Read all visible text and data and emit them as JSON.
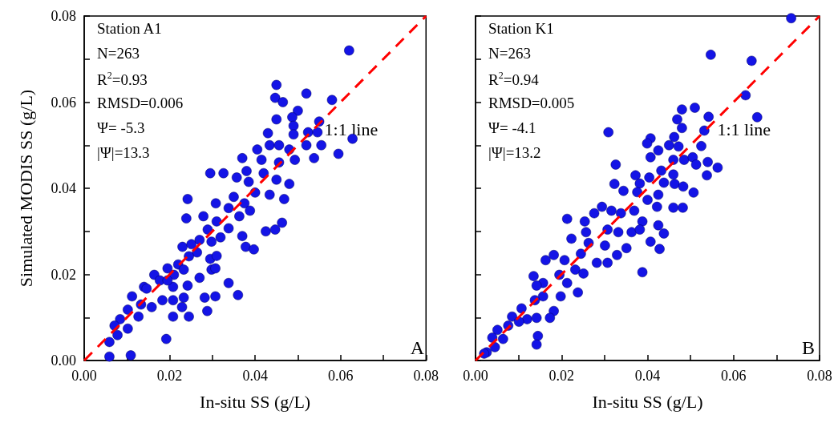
{
  "chart_data": [
    {
      "type": "scatter",
      "title": "Station A1",
      "subtitle": "A",
      "xlabel": "In-situ SS (g/L)",
      "ylabel": "Simulated MODIS SS (g/L)",
      "annotations": [
        "N=263",
        "R$^{2}$=0.93",
        "RMSD=0.006",
        "Ψ= -5.3",
        "|Ψ|=13.3"
      ],
      "marker": "circle",
      "grid": false,
      "xlim": [
        0,
        0.08
      ],
      "ylim": [
        0,
        0.08
      ],
      "xticks": [
        {
          "value": 0,
          "label": "0.00"
        },
        {
          "value": 0.01,
          "label": null
        },
        0.02,
        {
          "value": 0.03,
          "label": null
        },
        0.04,
        {
          "value": 0.05,
          "label": null
        },
        0.06,
        {
          "value": 0.07,
          "label": null
        },
        0.08
      ],
      "yticks": [
        {
          "value": 0,
          "label": "0.00"
        },
        {
          "value": 0.01,
          "label": null
        },
        0.02,
        {
          "value": 0.03,
          "label": null
        },
        0.04,
        {
          "value": 0.05,
          "label": null
        },
        0.06,
        {
          "value": 0.07,
          "label": null
        },
        0.08
      ],
      "series": [
        {
          "type": "scatter",
          "color": "#1414e6",
          "x": [
            0.062,
            0.045,
            0.052,
            0.058,
            0.0447,
            0.0465,
            0.05,
            0.0487,
            0.045,
            0.055,
            0.0628,
            0.049,
            0.049,
            0.0524,
            0.0546,
            0.043,
            0.0434,
            0.0456,
            0.052,
            0.0555,
            0.0595,
            0.0538,
            0.0405,
            0.037,
            0.048,
            0.0493,
            0.0415,
            0.0456,
            0.0295,
            0.0326,
            0.0357,
            0.038,
            0.042,
            0.045,
            0.048,
            0.0385,
            0.0468,
            0.0434,
            0.04,
            0.035,
            0.0375,
            0.0242,
            0.0308,
            0.0338,
            0.0363,
            0.0388,
            0.0239,
            0.0279,
            0.031,
            0.0338,
            0.0289,
            0.0425,
            0.0447,
            0.0463,
            0.037,
            0.0378,
            0.0397,
            0.0319,
            0.0298,
            0.023,
            0.0251,
            0.027,
            0.0264,
            0.0295,
            0.031,
            0.0245,
            0.022,
            0.0195,
            0.021,
            0.0233,
            0.027,
            0.0298,
            0.0307,
            0.0164,
            0.0177,
            0.0242,
            0.014,
            0.0208,
            0.0338,
            0.036,
            0.0307,
            0.0282,
            0.0288,
            0.0233,
            0.0208,
            0.0183,
            0.0158,
            0.0245,
            0.0208,
            0.0229,
            0.0112,
            0.0133,
            0.0127,
            0.0102,
            0.0084,
            0.0071,
            0.0102,
            0.0078,
            0.0059,
            0.0192,
            0.0059,
            0.0109,
            0.0146,
            0.0195
          ],
          "values": [
            0.072,
            0.064,
            0.062,
            0.0605,
            0.061,
            0.06,
            0.058,
            0.0565,
            0.056,
            0.0555,
            0.0515,
            0.0545,
            0.0525,
            0.053,
            0.053,
            0.0528,
            0.05,
            0.05,
            0.05,
            0.05,
            0.048,
            0.047,
            0.049,
            0.047,
            0.049,
            0.0466,
            0.0466,
            0.046,
            0.0435,
            0.0435,
            0.0425,
            0.044,
            0.0435,
            0.042,
            0.041,
            0.0415,
            0.0375,
            0.0385,
            0.039,
            0.038,
            0.0365,
            0.0375,
            0.0365,
            0.0354,
            0.0335,
            0.0348,
            0.033,
            0.0335,
            0.0323,
            0.0307,
            0.0304,
            0.03,
            0.0304,
            0.032,
            0.0289,
            0.0264,
            0.0258,
            0.0286,
            0.0276,
            0.0264,
            0.027,
            0.028,
            0.0251,
            0.0236,
            0.0243,
            0.0242,
            0.0223,
            0.0214,
            0.0199,
            0.0211,
            0.0192,
            0.0211,
            0.0214,
            0.0199,
            0.0186,
            0.0174,
            0.0171,
            0.0171,
            0.018,
            0.0152,
            0.0149,
            0.0146,
            0.0115,
            0.0146,
            0.014,
            0.014,
            0.0124,
            0.0102,
            0.0102,
            0.0124,
            0.0149,
            0.013,
            0.0102,
            0.0118,
            0.0096,
            0.0081,
            0.0074,
            0.0059,
            0.0043,
            0.005,
            0.0009,
            0.0012,
            0.0167,
            0.0186
          ]
        },
        {
          "type": "line",
          "name": "1:1 line",
          "color": "#ff0000",
          "line_style": "dashed",
          "marker": "none",
          "x": [
            0,
            0.08
          ],
          "values": [
            0,
            0.08
          ]
        }
      ]
    },
    {
      "type": "scatter",
      "title": "Station K1",
      "subtitle": "B",
      "xlabel": "In-situ SS (g/L)",
      "tick_labels": "x",
      "annotations": [
        "N=263",
        "R$^{2}$=0.94",
        "RMSD=0.005",
        "Ψ= -4.1",
        "|Ψ|=13.2"
      ],
      "marker": "circle",
      "grid": false,
      "xlim": [
        0,
        0.08
      ],
      "ylim": [
        0,
        0.08
      ],
      "xticks": [
        {
          "value": 0,
          "label": "0.00"
        },
        {
          "value": 0.01,
          "label": null
        },
        0.02,
        {
          "value": 0.03,
          "label": null
        },
        0.04,
        {
          "value": 0.05,
          "label": null
        },
        0.06,
        {
          "value": 0.07,
          "label": null
        },
        0.08
      ],
      "yticks": [
        0,
        0.01,
        0.02,
        0.03,
        0.04,
        0.05,
        0.06,
        0.07,
        0.08
      ],
      "series": [
        {
          "type": "scatter",
          "color": "#1414e6",
          "x": [
            0.0734,
            0.0547,
            0.0642,
            0.0628,
            0.0655,
            0.051,
            0.048,
            0.0542,
            0.0469,
            0.048,
            0.0532,
            0.0309,
            0.0407,
            0.0399,
            0.0462,
            0.0525,
            0.045,
            0.0472,
            0.0425,
            0.0407,
            0.046,
            0.0485,
            0.0505,
            0.0513,
            0.054,
            0.0563,
            0.0538,
            0.0326,
            0.0372,
            0.0404,
            0.0432,
            0.046,
            0.0382,
            0.0438,
            0.0463,
            0.0483,
            0.0507,
            0.0323,
            0.0344,
            0.0376,
            0.0425,
            0.04,
            0.0422,
            0.046,
            0.0482,
            0.0294,
            0.0316,
            0.0338,
            0.0369,
            0.0388,
            0.0425,
            0.0438,
            0.0363,
            0.0382,
            0.0213,
            0.0254,
            0.0276,
            0.0307,
            0.0332,
            0.0407,
            0.0428,
            0.0351,
            0.0329,
            0.0307,
            0.0282,
            0.0257,
            0.0223,
            0.0263,
            0.0301,
            0.0245,
            0.0388,
            0.0182,
            0.0163,
            0.0207,
            0.0232,
            0.0251,
            0.0135,
            0.0195,
            0.0157,
            0.0213,
            0.0238,
            0.0198,
            0.0142,
            0.0157,
            0.0182,
            0.0173,
            0.0138,
            0.0107,
            0.0085,
            0.012,
            0.0142,
            0.0145,
            0.0142,
            0.0051,
            0.0064,
            0.0039,
            0.0045,
            0.0026,
            0.002,
            0.0076,
            0.0101
          ],
          "values": [
            0.0795,
            0.071,
            0.0696,
            0.0616,
            0.0565,
            0.0587,
            0.0583,
            0.0566,
            0.056,
            0.054,
            0.0534,
            0.053,
            0.0516,
            0.0504,
            0.0519,
            0.0498,
            0.05,
            0.0497,
            0.0488,
            0.0472,
            0.0466,
            0.0466,
            0.0472,
            0.0455,
            0.0461,
            0.0448,
            0.043,
            0.0455,
            0.043,
            0.0425,
            0.0441,
            0.0432,
            0.0411,
            0.0413,
            0.041,
            0.0404,
            0.039,
            0.041,
            0.0394,
            0.0391,
            0.0385,
            0.0373,
            0.0357,
            0.0355,
            0.0355,
            0.0357,
            0.0348,
            0.0342,
            0.0348,
            0.0323,
            0.0314,
            0.0295,
            0.0298,
            0.0304,
            0.0329,
            0.0323,
            0.0342,
            0.0304,
            0.0298,
            0.0276,
            0.0259,
            0.0261,
            0.0245,
            0.0227,
            0.0227,
            0.0298,
            0.0283,
            0.0273,
            0.0267,
            0.0248,
            0.0205,
            0.0245,
            0.0233,
            0.0233,
            0.0211,
            0.0202,
            0.0196,
            0.0199,
            0.018,
            0.018,
            0.0158,
            0.0149,
            0.0174,
            0.0149,
            0.0115,
            0.0099,
            0.014,
            0.0121,
            0.0102,
            0.0096,
            0.0099,
            0.0057,
            0.0037,
            0.0071,
            0.005,
            0.0053,
            0.0031,
            0.0019,
            0.0016,
            0.0081,
            0.009
          ]
        },
        {
          "type": "line",
          "name": "1:1 line",
          "color": "#ff0000",
          "line_style": "dashed",
          "marker": "none",
          "x": [
            0,
            0.08
          ],
          "values": [
            0,
            0.08
          ]
        }
      ]
    }
  ]
}
